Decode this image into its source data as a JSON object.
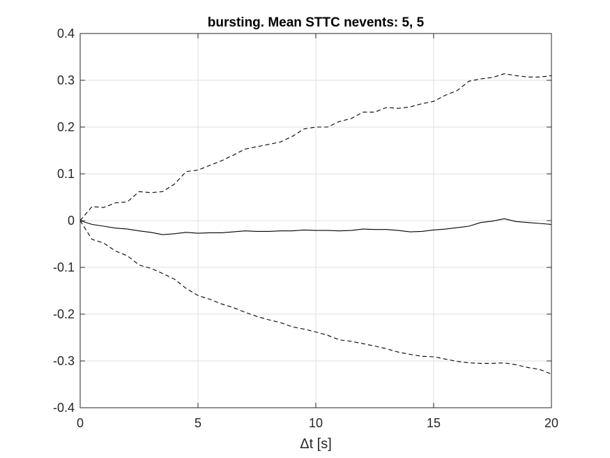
{
  "chart_data": {
    "type": "line",
    "title": "bursting.  Mean STTC nevents: 5, 5",
    "xlabel": "Δt [s]",
    "ylabel": "",
    "xlim": [
      0,
      20
    ],
    "ylim": [
      -0.4,
      0.4
    ],
    "xticks": [
      0,
      5,
      10,
      15,
      20
    ],
    "xtick_labels": [
      "0",
      "5",
      "10",
      "15",
      "20"
    ],
    "yticks": [
      0.4,
      0.3,
      0.2,
      0.1,
      0,
      -0.1,
      -0.2,
      -0.3,
      -0.4
    ],
    "ytick_labels": [
      "0.4",
      "0.3",
      "0.2",
      "0.1",
      "0",
      "-0.1",
      "-0.2",
      "-0.3",
      "-0.4"
    ],
    "grid": true,
    "x": [
      0,
      0.5,
      1,
      1.5,
      2,
      2.5,
      3,
      3.5,
      4,
      4.5,
      5,
      5.5,
      6,
      6.5,
      7,
      7.5,
      8,
      8.5,
      9,
      9.5,
      10,
      10.5,
      11,
      11.5,
      12,
      12.5,
      13,
      13.5,
      14,
      14.5,
      15,
      15.5,
      16,
      16.5,
      17,
      17.5,
      18,
      18.5,
      19,
      19.5,
      20
    ],
    "series": [
      {
        "style": "dashed",
        "color": "#000000",
        "values": [
          0,
          0.03,
          0.028,
          0.038,
          0.04,
          0.062,
          0.06,
          0.062,
          0.078,
          0.105,
          0.108,
          0.118,
          0.128,
          0.14,
          0.153,
          0.158,
          0.163,
          0.168,
          0.18,
          0.196,
          0.2,
          0.2,
          0.212,
          0.218,
          0.232,
          0.232,
          0.242,
          0.24,
          0.243,
          0.25,
          0.255,
          0.268,
          0.278,
          0.298,
          0.303,
          0.306,
          0.314,
          0.31,
          0.307,
          0.307,
          0.31
        ]
      },
      {
        "style": "solid",
        "color": "#000000",
        "values": [
          0,
          -0.008,
          -0.012,
          -0.016,
          -0.018,
          -0.022,
          -0.025,
          -0.03,
          -0.028,
          -0.025,
          -0.027,
          -0.026,
          -0.026,
          -0.024,
          -0.022,
          -0.023,
          -0.023,
          -0.022,
          -0.022,
          -0.02,
          -0.021,
          -0.021,
          -0.022,
          -0.021,
          -0.018,
          -0.019,
          -0.019,
          -0.021,
          -0.024,
          -0.023,
          -0.02,
          -0.018,
          -0.015,
          -0.012,
          -0.004,
          -0.001,
          0.004,
          -0.002,
          -0.004,
          -0.006,
          -0.008
        ]
      },
      {
        "style": "dashed",
        "color": "#000000",
        "values": [
          0,
          -0.04,
          -0.048,
          -0.065,
          -0.075,
          -0.095,
          -0.102,
          -0.113,
          -0.125,
          -0.145,
          -0.16,
          -0.168,
          -0.178,
          -0.186,
          -0.196,
          -0.205,
          -0.212,
          -0.218,
          -0.227,
          -0.232,
          -0.238,
          -0.245,
          -0.255,
          -0.258,
          -0.263,
          -0.268,
          -0.274,
          -0.281,
          -0.286,
          -0.29,
          -0.291,
          -0.296,
          -0.301,
          -0.304,
          -0.305,
          -0.305,
          -0.304,
          -0.308,
          -0.314,
          -0.318,
          -0.328
        ]
      }
    ]
  }
}
